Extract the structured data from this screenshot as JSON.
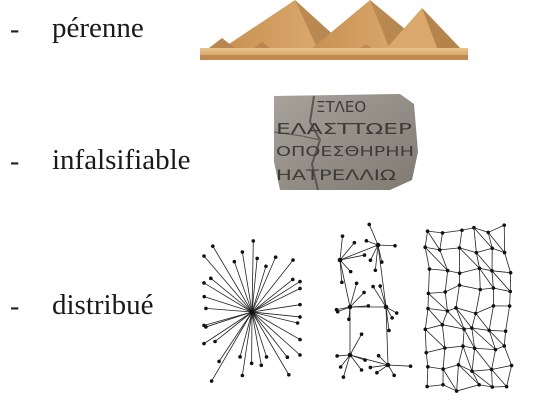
{
  "bullets": [
    {
      "dash": "-",
      "label": "pérenne"
    },
    {
      "dash": "-",
      "label": "infalsifiable"
    },
    {
      "dash": "-",
      "label": "distribué"
    }
  ],
  "images": {
    "pyramids": "pyramids-photo",
    "tablet": "inscribed-stone-tablet",
    "tablet_lines": [
      "ΞΤΛΕΟ",
      "ΕΛΑΣΤΤΩΕΡ",
      "ΟΠΟΕΣΘΗΡΗΗ",
      "ΗΑΤΡΕΛΛΙΩ"
    ],
    "networks": [
      "centralized-network",
      "decentralized-network",
      "distributed-network"
    ]
  },
  "colors": {
    "text": "#1a1a1a",
    "sand": "#d9b27a",
    "sky": "#ffffff",
    "stone": "#8f8a82",
    "network": "#111111"
  }
}
